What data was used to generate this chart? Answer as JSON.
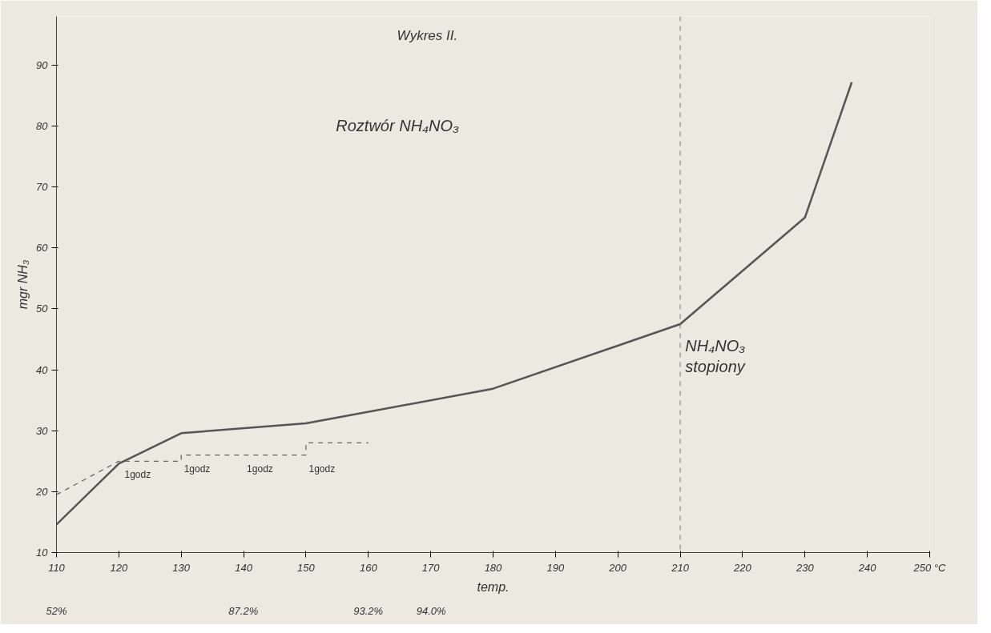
{
  "chart_data": {
    "type": "line",
    "title": "Wykres II.",
    "subtitle": "Roztwór NH₄NO₃",
    "xlabel": "temp.",
    "ylabel": "mgr NH₃",
    "xlim": [
      110,
      250
    ],
    "xticks": [
      110,
      120,
      130,
      140,
      150,
      160,
      170,
      180,
      190,
      200,
      210,
      220,
      230,
      240,
      {
        "value": 250,
        "label": "250 °C"
      }
    ],
    "ylim": [
      10,
      98
    ],
    "yticks": [
      10,
      20,
      30,
      40,
      50,
      60,
      70,
      80,
      90
    ],
    "grid": false,
    "series": [
      {
        "color": "#555555",
        "line_style": "solid",
        "x": [
          110,
          120,
          130,
          150,
          180,
          210,
          230,
          237.5
        ],
        "values": [
          14.6,
          24.6,
          29.6,
          31.2,
          36.9,
          47.5,
          65,
          87.2
        ]
      },
      {
        "color": "#666666",
        "line_style": "dashed",
        "x": [
          110,
          120,
          130,
          130,
          150,
          150,
          160
        ],
        "values": [
          19.5,
          25,
          25,
          26,
          26,
          28,
          28
        ]
      }
    ],
    "ref_lines": [
      {
        "axis": "x",
        "value": 210,
        "color": "#777777",
        "line_style": "dashed"
      }
    ],
    "annotations": [
      "NH₄NO₃ stopiony",
      "1godz",
      "1godz",
      "1godz",
      "1godz",
      "52%",
      "87.2%",
      "93.2%",
      "94.0%"
    ]
  }
}
